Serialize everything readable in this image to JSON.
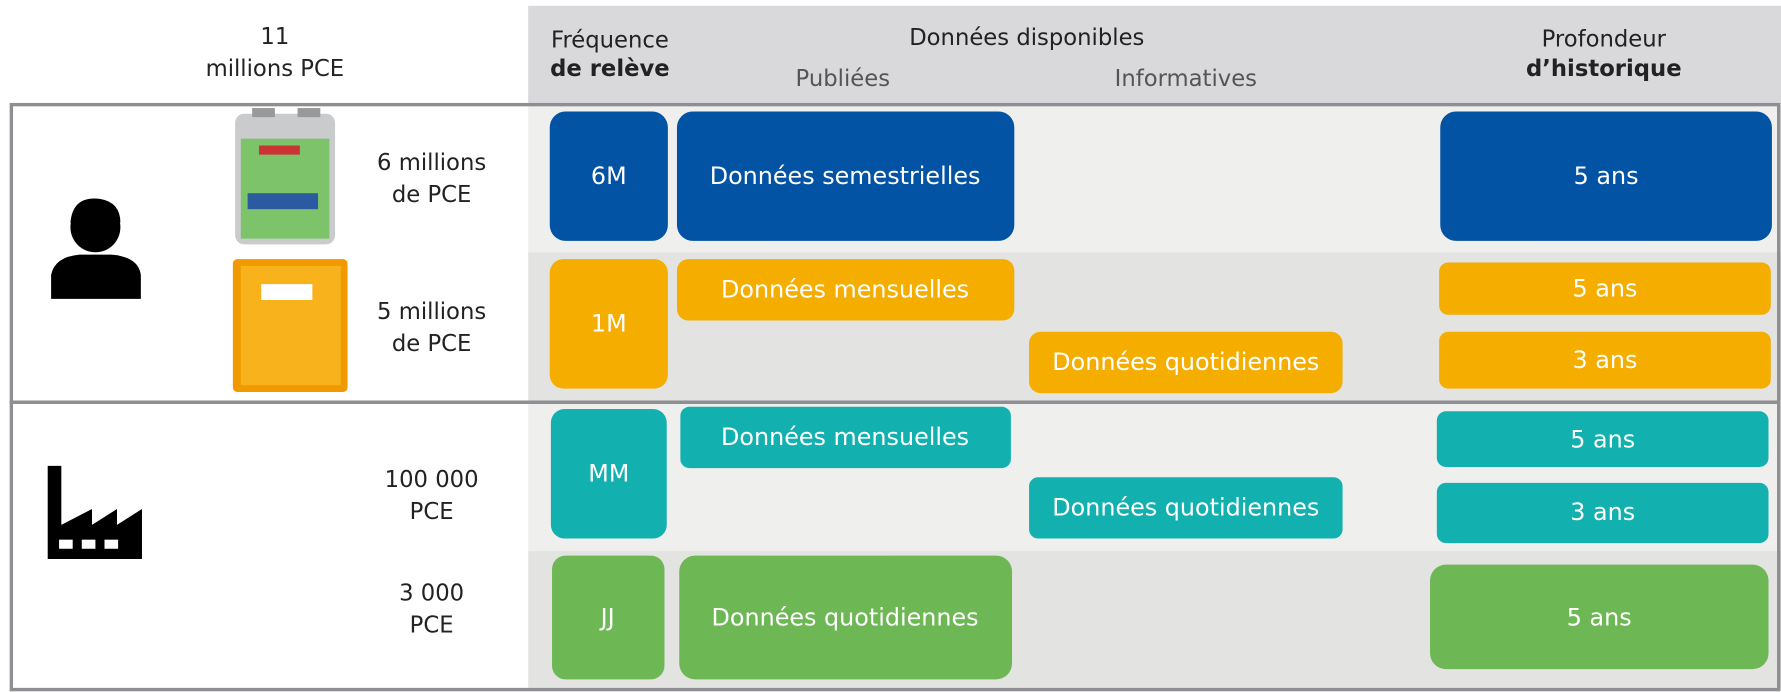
{
  "header": {
    "total_value": "11",
    "total_unit": "millions PCE",
    "frequency": [
      "Fréquence",
      "de relève"
    ],
    "available": "Données disponibles",
    "published": "Publiées",
    "informative": "Informatives",
    "history": [
      "Profondeur",
      "d’historique"
    ]
  },
  "rows": [
    {
      "count": [
        "6 millions",
        "de PCE"
      ],
      "frequency": "6M",
      "color": "#0353a4",
      "published": [
        "Données semestrielles"
      ],
      "informative": [],
      "history": [
        "5 ans"
      ]
    },
    {
      "count": [
        "5 millions",
        "de PCE"
      ],
      "frequency": "1M",
      "color": "#f5ad00",
      "published": [
        "Données mensuelles"
      ],
      "informative": [
        "Données quotidiennes"
      ],
      "history": [
        "5 ans",
        "3 ans"
      ]
    },
    {
      "count": [
        "100 000",
        "PCE"
      ],
      "frequency": "MM",
      "color": "#12b0ae",
      "published": [
        "Données mensuelles"
      ],
      "informative": [
        "Données quotidiennes"
      ],
      "history": [
        "5 ans",
        "3 ans"
      ]
    },
    {
      "count": [
        "3 000",
        "PCE"
      ],
      "frequency": "JJ",
      "color": "#6eb755",
      "published": [
        "Données quotidiennes"
      ],
      "informative": [],
      "history": [
        "5 ans"
      ]
    }
  ]
}
